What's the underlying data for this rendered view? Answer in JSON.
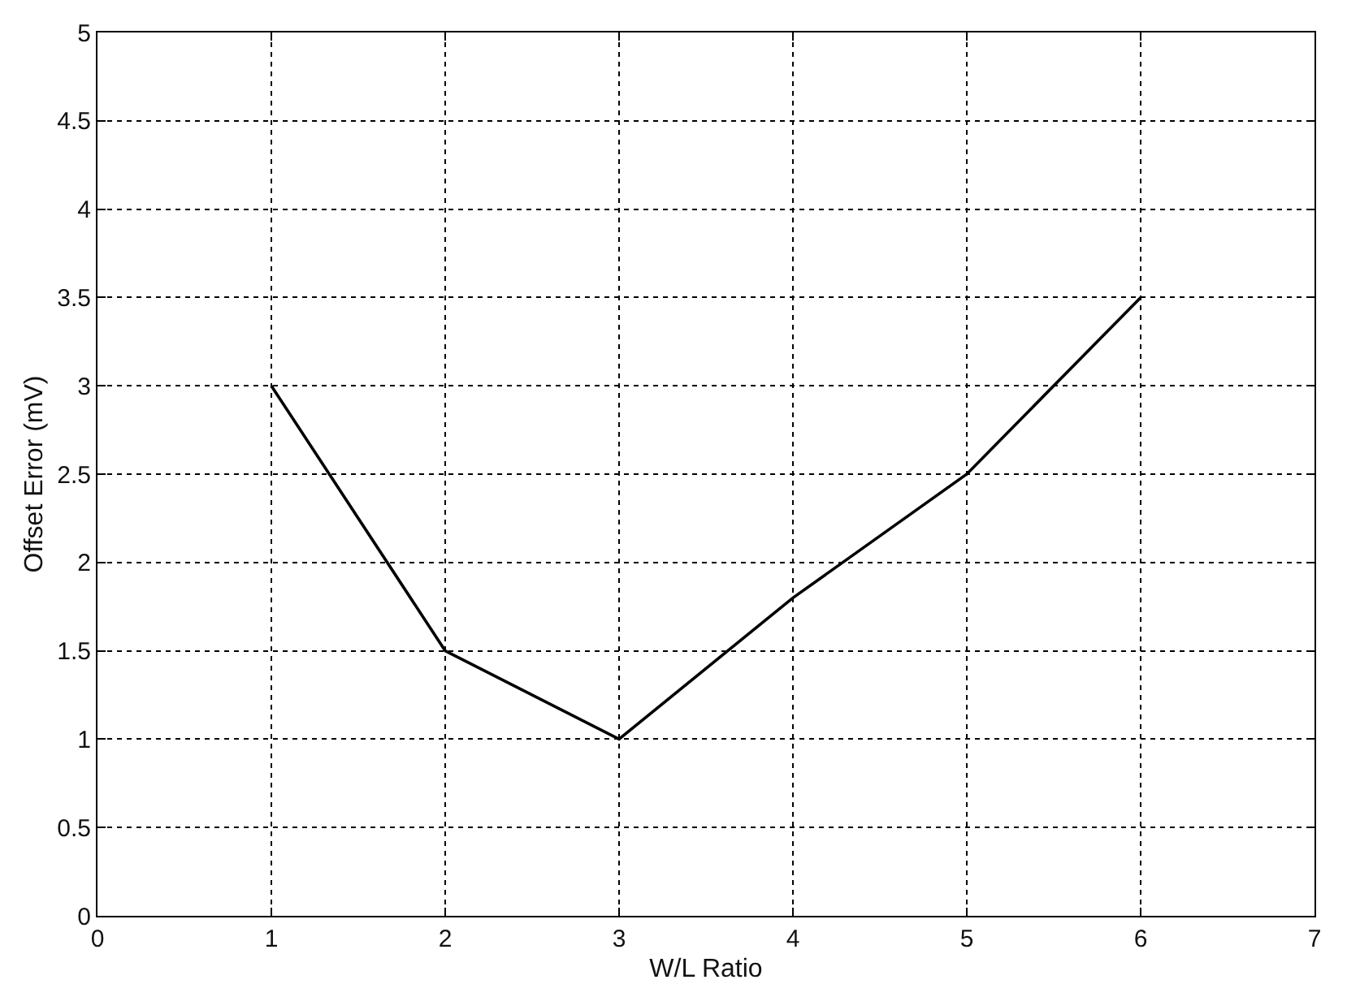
{
  "chart_data": {
    "type": "line",
    "xlabel": "W/L Ratio",
    "ylabel": "Offset Error (mV)",
    "x": [
      1,
      2,
      3,
      4,
      5,
      6
    ],
    "series": [
      {
        "color": "#000000",
        "values": [
          3,
          1.5,
          1,
          1.8,
          2.5,
          3.5
        ]
      }
    ],
    "xlim": [
      0,
      7
    ],
    "xticks": [
      0,
      1,
      2,
      3,
      4,
      5,
      6,
      7
    ],
    "ylim": [
      0,
      5
    ],
    "yticks": [
      0,
      0.5,
      1,
      1.5,
      2,
      2.5,
      3,
      3.5,
      4,
      4.5,
      5
    ],
    "grid": true,
    "marker": "none",
    "line_style": "solid"
  }
}
